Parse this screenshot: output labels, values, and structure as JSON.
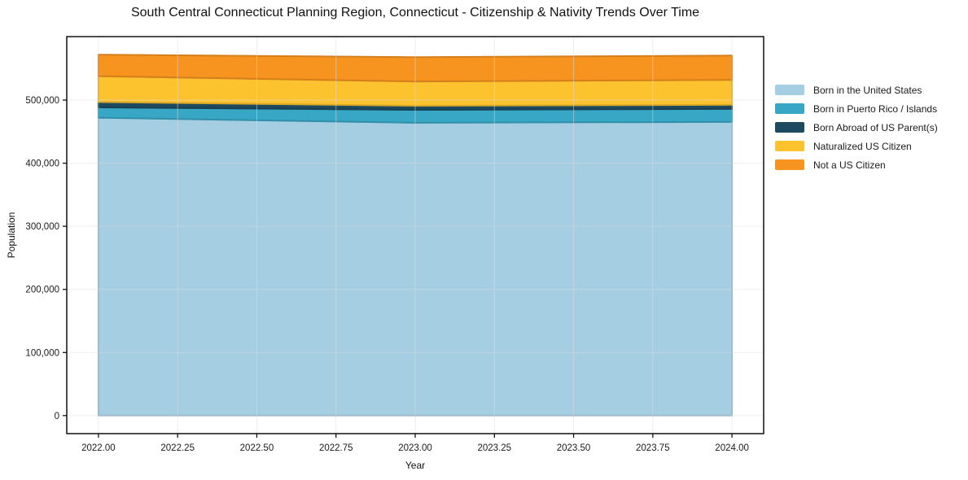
{
  "chart_data": {
    "type": "area",
    "stacked": true,
    "title": "South Central Connecticut Planning Region, Connecticut - Citizenship & Nativity Trends Over Time",
    "xlabel": "Year",
    "ylabel": "Population",
    "x": [
      2022,
      2023,
      2024
    ],
    "series": [
      {
        "name": "Born in the United States",
        "color": "#a6cee3",
        "values": [
          472000,
          464000,
          465500
        ]
      },
      {
        "name": "Born in Puerto Rico / Islands",
        "color": "#38a6c5",
        "values": [
          16500,
          20500,
          20500
        ]
      },
      {
        "name": "Born Abroad of US Parent(s)",
        "color": "#1d4a5f",
        "values": [
          8500,
          6500,
          6500
        ]
      },
      {
        "name": "Naturalized US Citizen",
        "color": "#fcc32f",
        "values": [
          41000,
          38500,
          39500
        ]
      },
      {
        "name": "Not a US Citizen",
        "color": "#f7941f",
        "values": [
          34000,
          38500,
          38500
        ]
      }
    ],
    "totals": [
      572000,
      568000,
      570500
    ],
    "xticks": [
      2022.0,
      2022.25,
      2022.5,
      2022.75,
      2023.0,
      2023.25,
      2023.5,
      2023.75,
      2024.0
    ],
    "xtick_labels": [
      "2022.00",
      "2022.25",
      "2022.50",
      "2022.75",
      "2023.00",
      "2023.25",
      "2023.50",
      "2023.75",
      "2024.00"
    ],
    "yticks": [
      0,
      100000,
      200000,
      300000,
      400000,
      500000
    ],
    "ytick_labels": [
      "0",
      "100,000",
      "200,000",
      "300,000",
      "400,000",
      "500,000"
    ],
    "xlim": [
      2021.9,
      2024.1
    ],
    "ylim": [
      -28600,
      600600
    ],
    "grid": true,
    "legend_position": "right of plot",
    "axis_color": "#000000",
    "grid_color": "#dcdcdc",
    "text_color": "#1a1a1a"
  }
}
